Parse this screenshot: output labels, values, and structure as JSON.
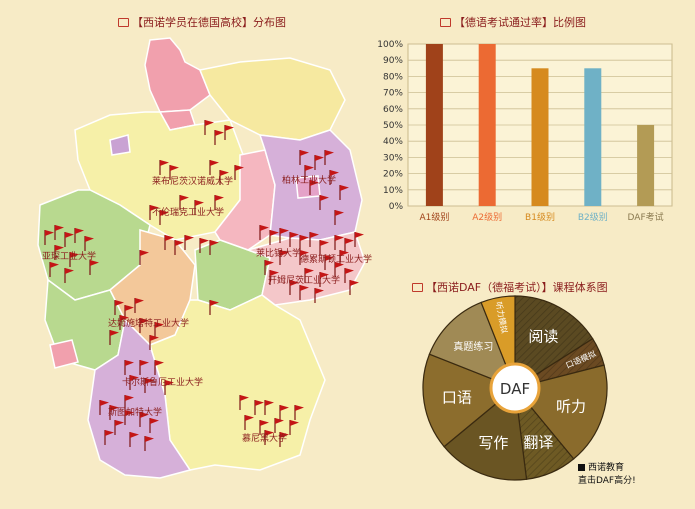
{
  "map": {
    "title": "【西诺学员在德国高校】分布图",
    "universities": [
      {
        "name": "莱布尼茨汉诺威大学"
      },
      {
        "name": "不伦瑞克工业大学"
      },
      {
        "name": "柏林工业大学"
      },
      {
        "name": "亚琛工业大学"
      },
      {
        "name": "莱比锡大学"
      },
      {
        "name": "德累斯顿工业大学"
      },
      {
        "name": "开姆尼茨工业大学"
      },
      {
        "name": "达姆施塔特工业大学"
      },
      {
        "name": "卡尔斯鲁厄工业大学"
      },
      {
        "name": "斯图加特大学"
      },
      {
        "name": "慕尼黑大学"
      }
    ]
  },
  "chart_data": [
    {
      "type": "bar",
      "title": "【德语考试通过率】比例图",
      "categories": [
        "A1级别",
        "A2级别",
        "B1级别",
        "B2级别",
        "DAF考试"
      ],
      "values": [
        100,
        100,
        85,
        85,
        50
      ],
      "colors": [
        "#a0421a",
        "#ec6a33",
        "#d68a1e",
        "#6fb1c6",
        "#b39b55"
      ],
      "label_colors": [
        "#a0421a",
        "#ec6a33",
        "#d68a1e",
        "#6fb1c6",
        "#8a7a50"
      ],
      "yticks": [
        "0%",
        "10%",
        "20%",
        "30%",
        "40%",
        "50%",
        "60%",
        "70%",
        "80%",
        "90%",
        "100%"
      ],
      "ylim": [
        0,
        100
      ],
      "grid": true
    },
    {
      "type": "pie",
      "title": "【西诺DAF（德福考试）】课程体系图",
      "center_label": "DAF",
      "slices": [
        {
          "label": "阅读",
          "value": 16,
          "color": "#5b4a22",
          "hatched": true
        },
        {
          "label": "口语模拟",
          "value": 5,
          "color": "#6b4a22",
          "hatched": true
        },
        {
          "label": "听力",
          "value": 18,
          "color": "#8a6b2c"
        },
        {
          "label": "翻译",
          "value": 9,
          "color": "#6e5a24",
          "hatched": true
        },
        {
          "label": "写作",
          "value": 16,
          "color": "#6a5523"
        },
        {
          "label": "口语",
          "value": 17,
          "color": "#8c6d2d"
        },
        {
          "label": "真题练习",
          "value": 13,
          "color": "#a08a55"
        },
        {
          "label": "听力模拟",
          "value": 6,
          "color": "#d99c28"
        }
      ]
    }
  ],
  "legend": {
    "line1": "西诺教育",
    "line2": "直击DAF高分!"
  }
}
